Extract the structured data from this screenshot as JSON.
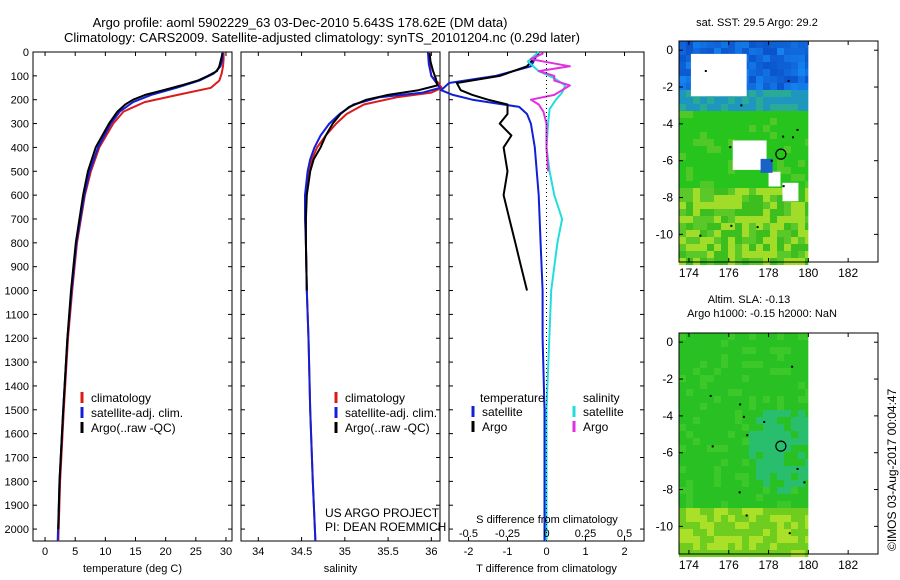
{
  "header": {
    "title_line1": "Argo profile: aoml 5902229_63 03-Dec-2010 5.643S 178.62E (DM data)",
    "title_line2": "Climatology: CARS2009. Satellite-adjusted climatology: synTS_20101204.nc (0.29d later)"
  },
  "colors": {
    "climatology": "#dd1a1a",
    "satellite": "#1020d8",
    "argo": "#000000",
    "sat_salinity": "#22dddd",
    "argo_salinity": "#e030e0",
    "ocean_blue": "#1a62c8",
    "ocean_green": "#22c418",
    "land_white": "#ffffff"
  },
  "footer": {
    "project": "US ARGO PROJECT",
    "pi": "PI: DEAN ROEMMICH",
    "stamp": "©IMOS 03-Aug-2017 00:04:47"
  },
  "chart_data": [
    {
      "type": "line",
      "name": "temperature",
      "xlabel": "temperature (deg C)",
      "ylabel": "",
      "xlim": [
        -2,
        31
      ],
      "ylim": [
        2050,
        0
      ],
      "xticks": [
        0,
        5,
        10,
        15,
        20,
        25,
        30
      ],
      "yticks": [
        0,
        100,
        200,
        300,
        400,
        500,
        600,
        700,
        800,
        900,
        1000,
        1100,
        1200,
        1300,
        1400,
        1500,
        1600,
        1700,
        1800,
        1900,
        2000
      ],
      "legend": [
        "climatology",
        "satellite-adj. clim.",
        "Argo(..raw -QC)"
      ],
      "series": [
        {
          "name": "climatology",
          "color": "#dd1a1a",
          "depth": [
            0,
            30,
            60,
            90,
            120,
            150,
            180,
            210,
            250,
            300,
            400,
            500,
            600,
            800,
            1000,
            1200,
            1500,
            1800,
            2050
          ],
          "values": [
            29.6,
            29.6,
            29.5,
            29.3,
            28.9,
            27.5,
            22.0,
            16.5,
            13.0,
            11.3,
            9.0,
            7.6,
            6.6,
            5.3,
            4.5,
            3.8,
            3.1,
            2.5,
            2.2
          ]
        },
        {
          "name": "satellite-adj. clim.",
          "color": "#1020d8",
          "depth": [
            0,
            30,
            60,
            90,
            120,
            150,
            180,
            210,
            250,
            300,
            400,
            500,
            600,
            800,
            1000,
            1200,
            1500,
            1800,
            2050
          ],
          "values": [
            29.4,
            29.4,
            29.1,
            28.0,
            25.6,
            21.8,
            17.6,
            14.6,
            12.4,
            10.9,
            8.8,
            7.4,
            6.5,
            5.2,
            4.4,
            3.7,
            3.0,
            2.4,
            2.1
          ]
        },
        {
          "name": "Argo(..raw -QC)",
          "color": "#000000",
          "depth": [
            5,
            20,
            40,
            60,
            80,
            100,
            120,
            140,
            160,
            180,
            200,
            220,
            250,
            300,
            400,
            500,
            600,
            800,
            1000,
            1200,
            1500,
            1800,
            2000
          ],
          "values": [
            29.4,
            29.3,
            29.1,
            28.9,
            28.5,
            27.0,
            25.3,
            22.6,
            19.6,
            16.6,
            14.6,
            13.3,
            12.0,
            10.6,
            8.4,
            7.1,
            6.3,
            5.1,
            4.3,
            3.7,
            3.0,
            2.4,
            2.2
          ]
        }
      ]
    },
    {
      "type": "line",
      "name": "salinity",
      "xlabel": "salinity",
      "ylabel": "",
      "xlim": [
        33.8,
        36.1
      ],
      "ylim": [
        2050,
        0
      ],
      "xticks": [
        34,
        34.5,
        35,
        35.5,
        36
      ],
      "legend": [
        "climatology",
        "satellite-adj. clim.",
        "Argo(..raw -QC)"
      ],
      "series": [
        {
          "name": "climatology",
          "color": "#dd1a1a",
          "depth": [
            0,
            50,
            100,
            130,
            150,
            170,
            190,
            220,
            260,
            300,
            350,
            400,
            450,
            500,
            600,
            700,
            800,
            1000,
            1200,
            1500,
            1800,
            2050
          ],
          "values": [
            35.98,
            35.98,
            36.0,
            36.08,
            36.12,
            36.0,
            35.6,
            35.22,
            35.02,
            34.9,
            34.78,
            34.68,
            34.62,
            34.58,
            34.55,
            34.55,
            34.55,
            34.56,
            34.58,
            34.6,
            34.63,
            34.66
          ]
        },
        {
          "name": "satellite-adj. clim.",
          "color": "#1020d8",
          "depth": [
            0,
            50,
            100,
            130,
            150,
            170,
            190,
            220,
            260,
            300,
            350,
            400,
            450,
            500,
            600,
            700,
            800,
            1000,
            1200,
            1500,
            1800,
            2050
          ],
          "values": [
            35.96,
            35.97,
            36.0,
            36.06,
            36.1,
            35.9,
            35.4,
            35.1,
            34.94,
            34.82,
            34.72,
            34.65,
            34.6,
            34.57,
            34.54,
            34.54,
            34.55,
            34.56,
            34.58,
            34.6,
            34.63,
            34.66
          ]
        },
        {
          "name": "Argo(..raw -QC)",
          "color": "#000000",
          "depth": [
            5,
            40,
            80,
            110,
            140,
            160,
            180,
            200,
            230,
            260,
            300,
            350,
            400,
            450,
            500,
            600,
            700,
            800,
            1000
          ],
          "values": [
            35.98,
            35.99,
            36.02,
            36.05,
            36.07,
            35.85,
            35.5,
            35.25,
            35.05,
            34.95,
            34.86,
            34.78,
            34.72,
            34.64,
            34.6,
            34.56,
            34.55,
            34.55,
            34.56
          ]
        }
      ]
    },
    {
      "type": "line",
      "name": "difference-from-climatology",
      "xlabel": "T difference from climatology",
      "xlabel_top": "S difference from climatology",
      "xlim": [
        -2.5,
        2.5
      ],
      "ylim": [
        2050,
        0
      ],
      "xticks_T": [
        -2,
        -1,
        0,
        1,
        2
      ],
      "xticks_S": [
        -0.5,
        -0.25,
        0,
        0.25,
        0.5
      ],
      "xticks_S_labels": [
        "-0.5",
        "-0.25",
        "0",
        "0.25",
        "0.5"
      ],
      "legend_headers": [
        "temperature",
        "salinity"
      ],
      "legend": [
        "satellite",
        "Argo",
        "satellite",
        "Argo"
      ],
      "series": [
        {
          "name": "T satellite",
          "color": "#1020d8",
          "depth": [
            0,
            60,
            100,
            130,
            160,
            180,
            200,
            230,
            260,
            300,
            400,
            600,
            800,
            1000,
            1200,
            1500,
            1800,
            2050
          ],
          "values": [
            -0.2,
            -0.4,
            -1.3,
            -2.5,
            -2.7,
            -2.4,
            -1.9,
            -0.7,
            -0.5,
            -0.4,
            -0.3,
            -0.2,
            -0.15,
            -0.1,
            -0.1,
            -0.05,
            -0.05,
            -0.05
          ]
        },
        {
          "name": "T Argo",
          "color": "#000000",
          "depth": [
            5,
            60,
            100,
            130,
            160,
            180,
            200,
            220,
            260,
            300,
            350,
            400,
            500,
            600,
            700,
            800,
            900,
            1000
          ],
          "values": [
            -0.2,
            -0.5,
            -1.2,
            -2.3,
            -2.2,
            -1.9,
            -1.5,
            -1.0,
            -1.0,
            -1.2,
            -0.9,
            -1.1,
            -1.0,
            -1.1,
            -0.95,
            -0.8,
            -0.65,
            -0.5
          ]
        },
        {
          "name": "S satellite",
          "color": "#22dddd",
          "depth": [
            0,
            40,
            80,
            110,
            140,
            170,
            200,
            240,
            300,
            400,
            500,
            600,
            700,
            800,
            1000,
            1500,
            2050
          ],
          "values": [
            -0.05,
            -0.12,
            -0.05,
            0.05,
            0.12,
            0.1,
            0.06,
            0.02,
            0.01,
            0.0,
            0.02,
            0.05,
            0.1,
            0.07,
            0.03,
            0.0,
            0.0
          ]
        },
        {
          "name": "S Argo",
          "color": "#e030e0",
          "depth": [
            5,
            30,
            60,
            80,
            100,
            120,
            140,
            160,
            180,
            200,
            220,
            250,
            300,
            400,
            500
          ],
          "values": [
            -0.02,
            -0.1,
            0.15,
            -0.05,
            0.05,
            0.05,
            0.15,
            0.1,
            0.05,
            -0.1,
            -0.05,
            -0.02,
            0.0,
            0.0,
            0.01
          ]
        }
      ]
    },
    {
      "type": "heatmap",
      "name": "sst-map",
      "title": "sat. SST: 29.5  Argo: 29.2",
      "xlim": [
        173.5,
        183.5
      ],
      "ylim": [
        -11.5,
        0.5
      ],
      "xticks": [
        174,
        176,
        178,
        180,
        182
      ],
      "yticks": [
        0,
        -2,
        -4,
        -6,
        -8,
        -10
      ],
      "argo_position": {
        "lon": 178.62,
        "lat": -5.643
      }
    },
    {
      "type": "heatmap",
      "name": "sla-map",
      "title": "Altim. SLA: -0.13",
      "subtitle": "Argo h1000: -0.15 h2000: NaN",
      "xlim": [
        173.5,
        183.5
      ],
      "ylim": [
        -11.5,
        0.5
      ],
      "xticks": [
        174,
        176,
        178,
        180,
        182
      ],
      "yticks": [
        0,
        -2,
        -4,
        -6,
        -8,
        -10
      ],
      "argo_position": {
        "lon": 178.62,
        "lat": -5.643
      }
    }
  ]
}
